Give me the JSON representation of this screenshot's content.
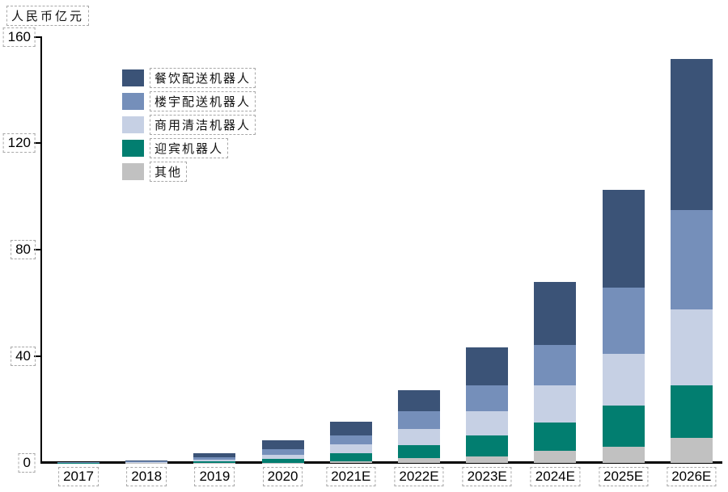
{
  "unit_label": "人民币亿元",
  "chart_data": {
    "type": "bar",
    "stacked": true,
    "title": "人民币亿元",
    "xlabel": "",
    "ylabel": "人民币亿元",
    "ylim": [
      0,
      160
    ],
    "y_ticks": [
      0,
      40,
      80,
      120,
      160
    ],
    "grid": false,
    "legend_position": "upper-left-inside",
    "categories": [
      "2017",
      "2018",
      "2019",
      "2020",
      "2021E",
      "2022E",
      "2023E",
      "2024E",
      "2025E",
      "2026E"
    ],
    "series": [
      {
        "name": "餐饮配送机器人",
        "color": "#3B5377",
        "values": [
          0.2,
          0.4,
          1.5,
          3.2,
          5.3,
          8.1,
          14.5,
          23.6,
          36.7,
          56.7
        ]
      },
      {
        "name": "楼宇配送机器人",
        "color": "#758FBA",
        "values": [
          0.1,
          0.3,
          1.0,
          2.3,
          3.3,
          6.4,
          9.6,
          15.2,
          24.8,
          37.2
        ]
      },
      {
        "name": "商用清洁机器人",
        "color": "#C6D0E4",
        "values": [
          0.05,
          0.2,
          0.6,
          1.6,
          3.2,
          6.1,
          9.1,
          13.9,
          19.5,
          28.6
        ]
      },
      {
        "name": "迎宾机器人",
        "color": "#027E70",
        "values": [
          0.03,
          0.1,
          0.5,
          1.3,
          3.0,
          5.1,
          7.8,
          10.6,
          15.4,
          19.9
        ]
      },
      {
        "name": "其他",
        "color": "#C1C1C1",
        "values": [
          0.02,
          0.05,
          0.1,
          0.1,
          0.7,
          1.7,
          2.5,
          4.7,
          6.2,
          9.3
        ]
      }
    ],
    "totals": [
      0.4,
      1.05,
      3.7,
      8.5,
      15.5,
      27.4,
      43.5,
      68.0,
      102.6,
      151.7
    ]
  },
  "axis_color": "#000000",
  "annotation_box_color": "#a8a8a8"
}
